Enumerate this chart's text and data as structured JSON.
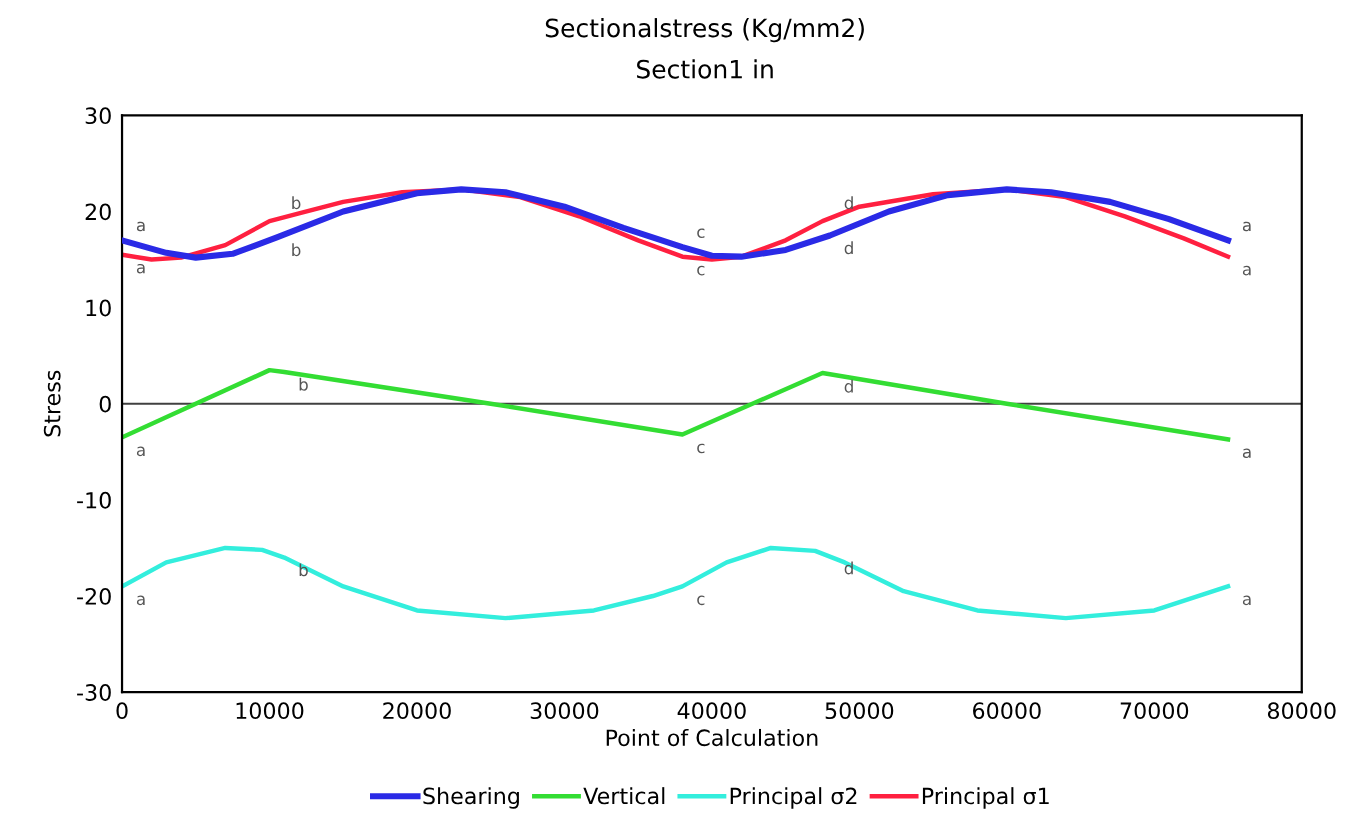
{
  "chart_data": {
    "type": "line",
    "title": "Sectionalstress (Kg/mm2)",
    "subtitle": "Section1 in",
    "xlabel": "Point of Calculation",
    "ylabel": "Stress",
    "xlim": [
      0,
      80000
    ],
    "xticks": [
      0,
      10000,
      20000,
      30000,
      40000,
      50000,
      60000,
      70000,
      80000
    ],
    "ylim": [
      -30,
      30
    ],
    "yticks": [
      -30,
      -20,
      -10,
      0,
      10,
      20,
      30
    ],
    "grid": false,
    "legend": "bottom",
    "marker": "none",
    "line_style": "solid",
    "ref_lines": [
      {
        "axis": "y",
        "value": 0,
        "color": "#404040"
      }
    ],
    "series": [
      {
        "name": "Shearing",
        "color": "#2a2ae6",
        "x": [
          0,
          3000,
          5000,
          7500,
          10500,
          15000,
          20000,
          23000,
          26000,
          30000,
          34000,
          38000,
          40000,
          42000,
          45000,
          48000,
          52000,
          56000,
          60000,
          63000,
          67000,
          71000,
          75000
        ],
        "values": [
          17,
          15.7,
          15.2,
          15.6,
          17.3,
          20,
          21.9,
          22.3,
          22,
          20.5,
          18.3,
          16.3,
          15.4,
          15.3,
          16,
          17.5,
          20,
          21.7,
          22.3,
          22,
          21,
          19.2,
          17
        ]
      },
      {
        "name": "Vertical",
        "color": "#33dd33",
        "x": [
          0,
          10000,
          11000,
          25000,
          38000,
          47500,
          60000,
          75000
        ],
        "values": [
          -3.5,
          3.5,
          3.3,
          0,
          -3.2,
          3.2,
          0,
          -3.7
        ]
      },
      {
        "name": "Principal σ2",
        "color": "#33eedd",
        "x": [
          0,
          3000,
          7000,
          9500,
          11000,
          15000,
          20000,
          26000,
          32000,
          36000,
          38000,
          41000,
          44000,
          47000,
          49000,
          53000,
          58000,
          64000,
          70000,
          75000
        ],
        "values": [
          -19,
          -16.5,
          -15,
          -15.2,
          -16,
          -19,
          -21.5,
          -22.3,
          -21.5,
          -20,
          -19,
          -16.5,
          -15,
          -15.3,
          -16.5,
          -19.5,
          -21.5,
          -22.3,
          -21.5,
          -19
        ]
      },
      {
        "name": "Principal σ1",
        "color": "#ff2040",
        "x": [
          0,
          2000,
          4000,
          7000,
          10000,
          12000,
          15000,
          19000,
          23000,
          27000,
          31000,
          35000,
          38000,
          40000,
          42000,
          45000,
          47500,
          50000,
          55000,
          60000,
          64000,
          68000,
          72000,
          75000
        ],
        "values": [
          15.5,
          15,
          15.2,
          16.5,
          19,
          19.8,
          21,
          22,
          22.3,
          21.5,
          19.5,
          17,
          15.3,
          15,
          15.3,
          17,
          19,
          20.5,
          21.8,
          22.3,
          21.5,
          19.5,
          17.2,
          15.3
        ]
      }
    ],
    "annotations": [
      {
        "text": "a",
        "x": 0,
        "y": 17
      },
      {
        "text": "b",
        "x": 10500,
        "y": 17.3
      },
      {
        "text": "c",
        "x": 38000,
        "y": 16.3
      },
      {
        "text": "d",
        "x": 48000,
        "y": 17.5
      },
      {
        "text": "a",
        "x": 75000,
        "y": 17
      },
      {
        "text": "a",
        "x": 0,
        "y": 15.5
      },
      {
        "text": "b",
        "x": 10500,
        "y": 19.3
      },
      {
        "text": "c",
        "x": 38000,
        "y": 15.3
      },
      {
        "text": "d",
        "x": 48000,
        "y": 19.3
      },
      {
        "text": "a",
        "x": 75000,
        "y": 15.3
      },
      {
        "text": "a",
        "x": 0,
        "y": -3.5
      },
      {
        "text": "b",
        "x": 11000,
        "y": 3.3
      },
      {
        "text": "c",
        "x": 38000,
        "y": -3.2
      },
      {
        "text": "d",
        "x": 48000,
        "y": 3.1
      },
      {
        "text": "a",
        "x": 75000,
        "y": -3.7
      },
      {
        "text": "a",
        "x": 0,
        "y": -19
      },
      {
        "text": "b",
        "x": 11000,
        "y": -16
      },
      {
        "text": "c",
        "x": 38000,
        "y": -19
      },
      {
        "text": "d",
        "x": 48000,
        "y": -15.8
      },
      {
        "text": "a",
        "x": 75000,
        "y": -19
      }
    ]
  }
}
